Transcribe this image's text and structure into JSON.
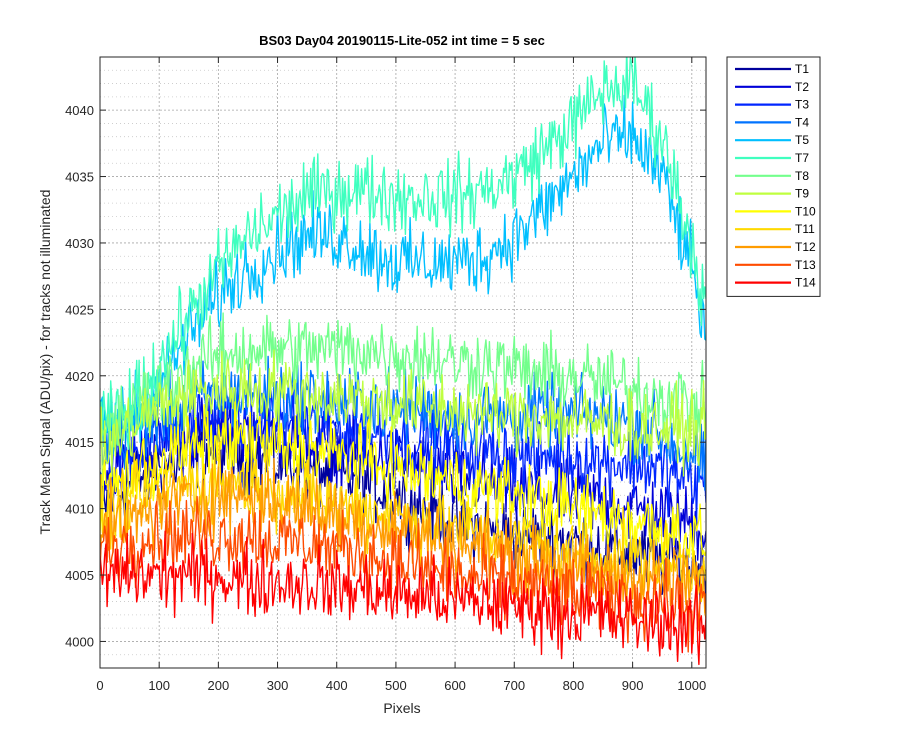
{
  "chart_data": {
    "type": "line",
    "title": "BS03 Day04 20190115-Lite-052 int time = 5 sec",
    "xlabel": "Pixels",
    "ylabel": "Track Mean Signal (ADU/pix) - for tracks not illuminated",
    "xlim": [
      0,
      1024
    ],
    "ylim": [
      3998,
      4044
    ],
    "xticks": [
      0,
      100,
      200,
      300,
      400,
      500,
      600,
      700,
      800,
      900,
      1000
    ],
    "yticks": [
      4000,
      4005,
      4010,
      4015,
      4020,
      4025,
      4030,
      4035,
      4040
    ],
    "grid": true,
    "minor_grid": true,
    "legend_position": "outside-top-right",
    "x": [
      0,
      50,
      100,
      150,
      200,
      250,
      300,
      350,
      400,
      450,
      500,
      550,
      600,
      650,
      700,
      750,
      800,
      850,
      900,
      950,
      1000,
      1024
    ],
    "series": [
      {
        "name": "T1",
        "color": "#00009C",
        "values": [
          4010,
          4012,
          4013,
          4014,
          4014.5,
          4014,
          4013.5,
          4013,
          4012.5,
          4012,
          4011,
          4010,
          4009,
          4008.5,
          4008,
          4008,
          4007.5,
          4007,
          4006.5,
          4006,
          4006,
          4005.5
        ]
      },
      {
        "name": "T2",
        "color": "#0000D8",
        "values": [
          4012,
          4013.5,
          4014.5,
          4015.5,
          4016,
          4016,
          4015.5,
          4015,
          4014.5,
          4014,
          4013.5,
          4013,
          4012.5,
          4012,
          4011.5,
          4011,
          4011,
          4010.5,
          4010,
          4009.5,
          4009,
          4008.5
        ]
      },
      {
        "name": "T3",
        "color": "#0026FF",
        "values": [
          4013,
          4014.5,
          4015.5,
          4016.5,
          4017,
          4017,
          4016.5,
          4016.5,
          4016,
          4016,
          4015.5,
          4015,
          4014.5,
          4014.5,
          4014,
          4014,
          4014,
          4013.5,
          4013.5,
          4013,
          4012,
          4011.5
        ]
      },
      {
        "name": "T4",
        "color": "#0073FF",
        "values": [
          4015,
          4016,
          4017,
          4018,
          4018.5,
          4018.5,
          4018.5,
          4018.5,
          4018,
          4018,
          4017.5,
          4017.5,
          4017,
          4017,
          4017,
          4017,
          4017,
          4017,
          4016.5,
          4015.5,
          4014,
          4013
        ]
      },
      {
        "name": "T5",
        "color": "#00BFFF",
        "values": [
          4016,
          4017,
          4019.5,
          4023,
          4026,
          4028,
          4029.5,
          4030.5,
          4030.5,
          4029.5,
          4028.5,
          4028.5,
          4028.5,
          4029,
          4030.5,
          4032.5,
          4035,
          4037.5,
          4038,
          4035,
          4028,
          4023
        ]
      },
      {
        "name": "T7",
        "color": "#3FFFBF",
        "values": [
          4016,
          4017.5,
          4021,
          4024.5,
          4028,
          4030.5,
          4032,
          4033.5,
          4034,
          4034,
          4033.5,
          4033.5,
          4033.5,
          4034,
          4035,
          4037,
          4039,
          4041.5,
          4042,
          4038,
          4030,
          4025
        ]
      },
      {
        "name": "T8",
        "color": "#73FF8C",
        "values": [
          4015,
          4017,
          4019,
          4020.5,
          4021.5,
          4022,
          4022,
          4022,
          4022,
          4022,
          4021.5,
          4021.5,
          4021,
          4021,
          4020.5,
          4020,
          4020,
          4019.5,
          4019,
          4018.5,
          4018,
          4017.5
        ]
      },
      {
        "name": "T9",
        "color": "#BFFF3F",
        "values": [
          4014,
          4016,
          4017.5,
          4018.5,
          4019,
          4019,
          4019,
          4018.5,
          4018.5,
          4018,
          4018,
          4017.5,
          4017.5,
          4017,
          4017,
          4017,
          4016.5,
          4016.5,
          4016,
          4016,
          4016,
          4016
        ]
      },
      {
        "name": "T10",
        "color": "#FFFF00",
        "values": [
          4011,
          4012.5,
          4013.5,
          4014.5,
          4015,
          4015,
          4014.5,
          4014.5,
          4014,
          4013.5,
          4013,
          4012.5,
          4012,
          4011.5,
          4011,
          4010.5,
          4010,
          4009.5,
          4009,
          4008.5,
          4008,
          4007.5
        ]
      },
      {
        "name": "T11",
        "color": "#FFD900",
        "values": [
          4009,
          4010.5,
          4011.5,
          4012,
          4012,
          4012,
          4011.5,
          4011,
          4010.5,
          4010,
          4009.5,
          4009,
          4008.5,
          4008,
          4007.5,
          4007,
          4006.5,
          4006.5,
          4006,
          4006,
          4005.5,
          4005.5
        ]
      },
      {
        "name": "T12",
        "color": "#FF9C00",
        "values": [
          4008,
          4009,
          4010,
          4010.5,
          4011,
          4011,
          4010.5,
          4010,
          4009.5,
          4009,
          4008.5,
          4008,
          4007.5,
          4007,
          4006.5,
          4006,
          4005.5,
          4005,
          4005,
          4004.5,
          4004.5,
          4004
        ]
      },
      {
        "name": "T13",
        "color": "#FF4C00",
        "values": [
          4007,
          4007.5,
          4008,
          4008,
          4008,
          4008,
          4007.5,
          4007.5,
          4007,
          4006.5,
          4006,
          4005.5,
          4005,
          4004.5,
          4004.5,
          4004,
          4003.5,
          4003.5,
          4003,
          4003,
          4002.5,
          4002.5
        ]
      },
      {
        "name": "T14",
        "color": "#FF0000",
        "values": [
          4005,
          4005,
          4005,
          4005,
          4005,
          4004.5,
          4004.5,
          4004.5,
          4004,
          4004,
          4003.5,
          4003.5,
          4003,
          4003,
          4002.5,
          4002.5,
          4002,
          4002,
          4001.5,
          4001.5,
          4001,
          4001
        ]
      }
    ]
  }
}
